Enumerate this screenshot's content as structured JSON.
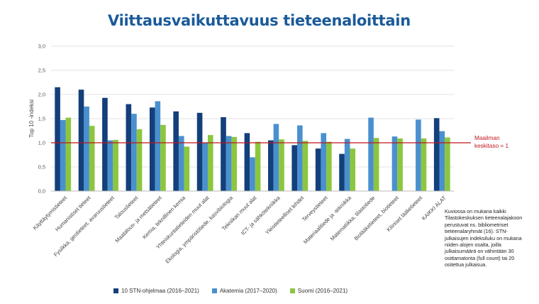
{
  "page": {
    "title": "Viittausvaikuttavuus tieteenaloittain"
  },
  "note": "Kuviossa on mukana kaikki Tilastokeskuksen tieteenalajakoon perustuvat ns. bibliometriset tieteenalaryhmät (16). STN-julkaisujen indeksiluku on mukana niiden alojen osalta, joilla julkaisumäärä on vähintään 30 osittamatonta (full count) tai 20 ositettua julkaisua.",
  "chart_data": {
    "type": "bar",
    "title": "Viittausvaikuttavuus tieteenaloittain",
    "ylabel": "Top 10 -indeksi",
    "ylim": [
      0,
      3
    ],
    "yticks": [
      "0,0",
      "0,5",
      "1,0",
      "1,5",
      "2,0",
      "2,5",
      "3,0"
    ],
    "categories": [
      "Käyttäytymistieteet",
      "Humanistiset tieteet",
      "Fysiikka, geotieteet, avaruustieteet",
      "Taloustieteet",
      "Maatalous- ja metsätieteet",
      "Kemia, teknillinen kemia",
      "Yhteiskuntatieteiden muut alat",
      "Ekologia, ympäristötiede, kasvibiologia",
      "Tekniikan muut alat",
      "ICT- ja sähkötekniikka",
      "Yleistieteelliset lehdet",
      "Terveystieteet",
      "Materiaalitiede ja -tekniikka",
      "Matematiikka, tilastotiede",
      "Biolääketieteet, biotieteet",
      "Kliiniset lääketieteet",
      "KAIKKI ALAT"
    ],
    "series": [
      {
        "name": "10 STN-ohjelmaa (2016–2021)",
        "color": "#133f7a",
        "values": [
          2.15,
          2.1,
          1.93,
          1.8,
          1.73,
          1.65,
          1.62,
          1.53,
          1.2,
          1.05,
          0.95,
          0.88,
          0.77,
          null,
          null,
          null,
          1.51
        ]
      },
      {
        "name": "Akatemia (2017–2020)",
        "color": "#4a90cf",
        "values": [
          1.47,
          1.75,
          1.05,
          1.6,
          1.86,
          1.14,
          1.0,
          1.14,
          0.7,
          1.39,
          1.36,
          1.2,
          1.08,
          1.52,
          1.13,
          1.48,
          1.24
        ]
      },
      {
        "name": "Suomi (2016–2021)",
        "color": "#8cc63f",
        "values": [
          1.52,
          1.35,
          1.06,
          1.28,
          1.37,
          0.92,
          1.16,
          1.12,
          1.02,
          1.07,
          1.04,
          1.02,
          0.88,
          1.1,
          1.09,
          1.09,
          1.11
        ]
      }
    ],
    "reference_line": {
      "value": 1.0,
      "color": "#c0151b",
      "label_lines": [
        "Maailman",
        "keskitaso = 1"
      ]
    },
    "legend": "bottom",
    "grid": true
  }
}
